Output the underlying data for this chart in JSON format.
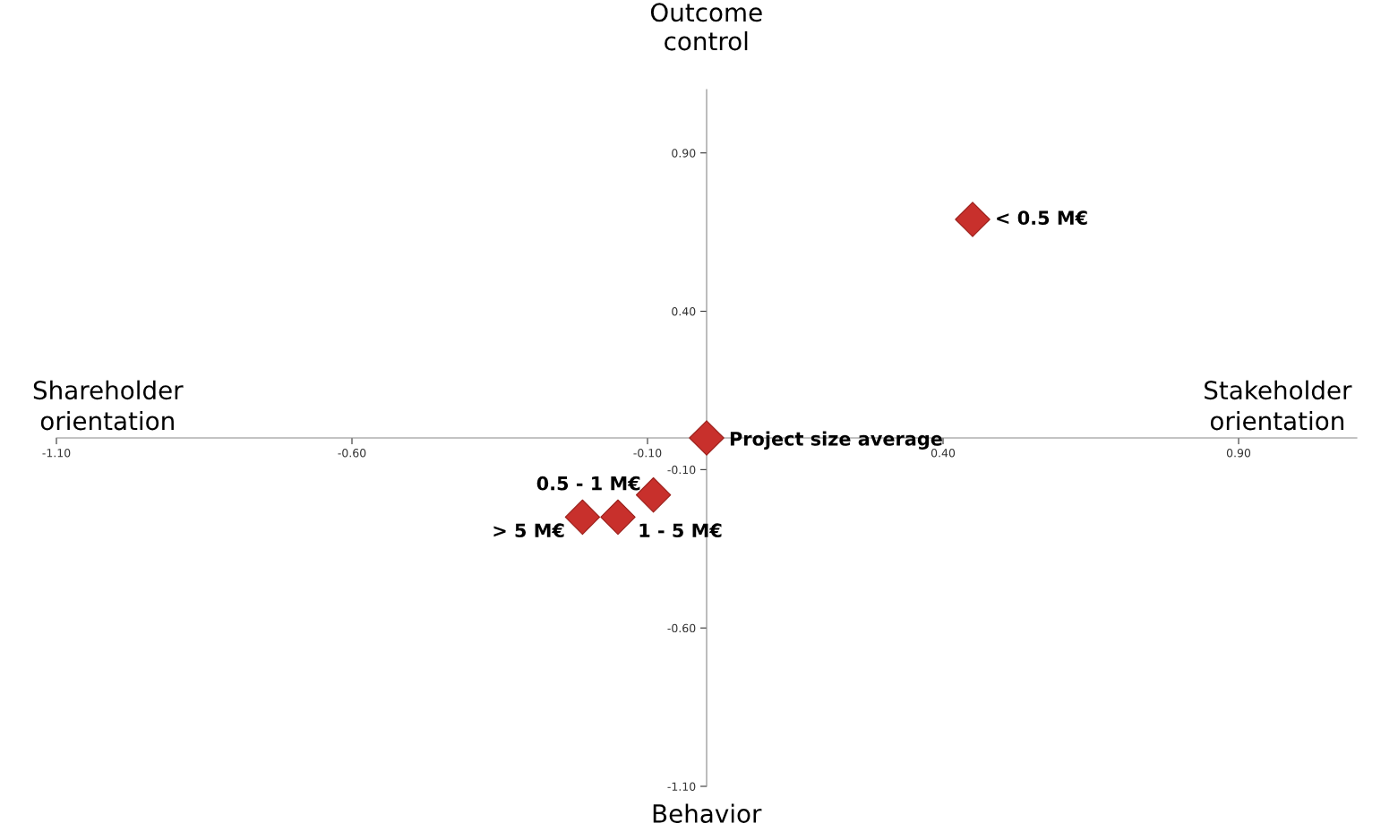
{
  "chart_data": {
    "type": "scatter",
    "x": [
      0.45,
      0,
      -0.09,
      -0.15,
      -0.21
    ],
    "series": [
      {
        "color": "#c8302c",
        "values": [
          0.69,
          0,
          -0.18,
          -0.25,
          -0.25
        ]
      }
    ],
    "xlim": [
      -1.1,
      1.1
    ],
    "ylim": [
      -1.1,
      1.1
    ],
    "xticks": [
      {
        "value": -1.1,
        "label": "-1.10"
      },
      {
        "value": -0.6,
        "label": "-0.60"
      },
      {
        "value": -0.1,
        "label": "-0.10"
      },
      {
        "value": 0.4,
        "label": "0.40"
      },
      {
        "value": 0.9,
        "label": "0.90"
      }
    ],
    "yticks": [
      {
        "value": -1.1,
        "label": "-1.10"
      },
      {
        "value": -0.6,
        "label": "-0.60"
      },
      {
        "value": -0.1,
        "label": "-0.10"
      },
      {
        "value": 0.4,
        "label": "0.40"
      },
      {
        "value": 0.9,
        "label": "0.90"
      }
    ],
    "marker": "diamond",
    "grid": false,
    "annotations": [
      {
        "text": "< 0.5 M€",
        "x": 0.45,
        "y": 0.69
      },
      {
        "text": "Project size average",
        "x": 0,
        "y": 0
      },
      {
        "text": "0.5 - 1 M€",
        "x": -0.09,
        "y": -0.18
      },
      {
        "text": "1 - 5 M€",
        "x": -0.15,
        "y": -0.25
      },
      {
        "text": "> 5 M€",
        "x": -0.21,
        "y": -0.25
      },
      "Outcome\ncontrol",
      "Behavior",
      "Shareholder\norientation",
      "Stakeholder\norientation"
    ]
  }
}
